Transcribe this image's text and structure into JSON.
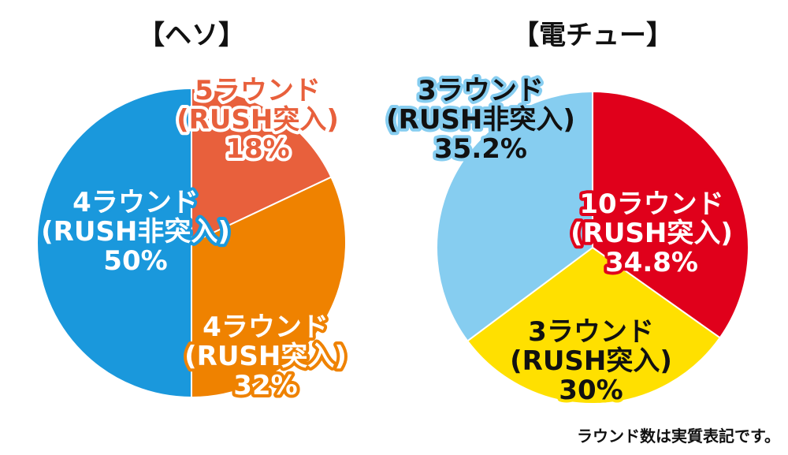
{
  "footnote": "ラウンド数は実質表記です。",
  "chart_data": [
    {
      "type": "pie",
      "title": "【ヘソ】",
      "slices": [
        {
          "lines": [
            "5ラウンド",
            "(RUSH突入)",
            "18%"
          ],
          "value": 18,
          "color": "#e8603c",
          "text_fill": "#e8603c",
          "text_stroke": "#ffffff"
        },
        {
          "lines": [
            "4ラウンド",
            "(RUSH突入)",
            "32%"
          ],
          "value": 32,
          "color": "#ef8200",
          "text_fill": "#ffffff",
          "text_stroke": "#ef8200"
        },
        {
          "lines": [
            "4ラウンド",
            "(RUSH非突入)",
            "50%"
          ],
          "value": 50,
          "color": "#1a98dc",
          "text_fill": "#ffffff",
          "text_stroke": "#1a98dc"
        }
      ]
    },
    {
      "type": "pie",
      "title": "【電チュー】",
      "slices": [
        {
          "lines": [
            "10ラウンド",
            "(RUSH突入)",
            "34.8%"
          ],
          "value": 34.8,
          "color": "#e0001b",
          "text_fill": "#ffffff",
          "text_stroke": "#e0001b"
        },
        {
          "lines": [
            "3ラウンド",
            "(RUSH突入)",
            "30%"
          ],
          "value": 30,
          "color": "#ffe000",
          "text_fill": "#111111",
          "text_stroke": "#ffe000"
        },
        {
          "lines": [
            "3ラウンド",
            "(RUSH非突入)",
            "35.2%"
          ],
          "value": 35.2,
          "color": "#86cdf0",
          "text_fill": "#111111",
          "text_stroke": "#86cdf0"
        }
      ]
    }
  ]
}
